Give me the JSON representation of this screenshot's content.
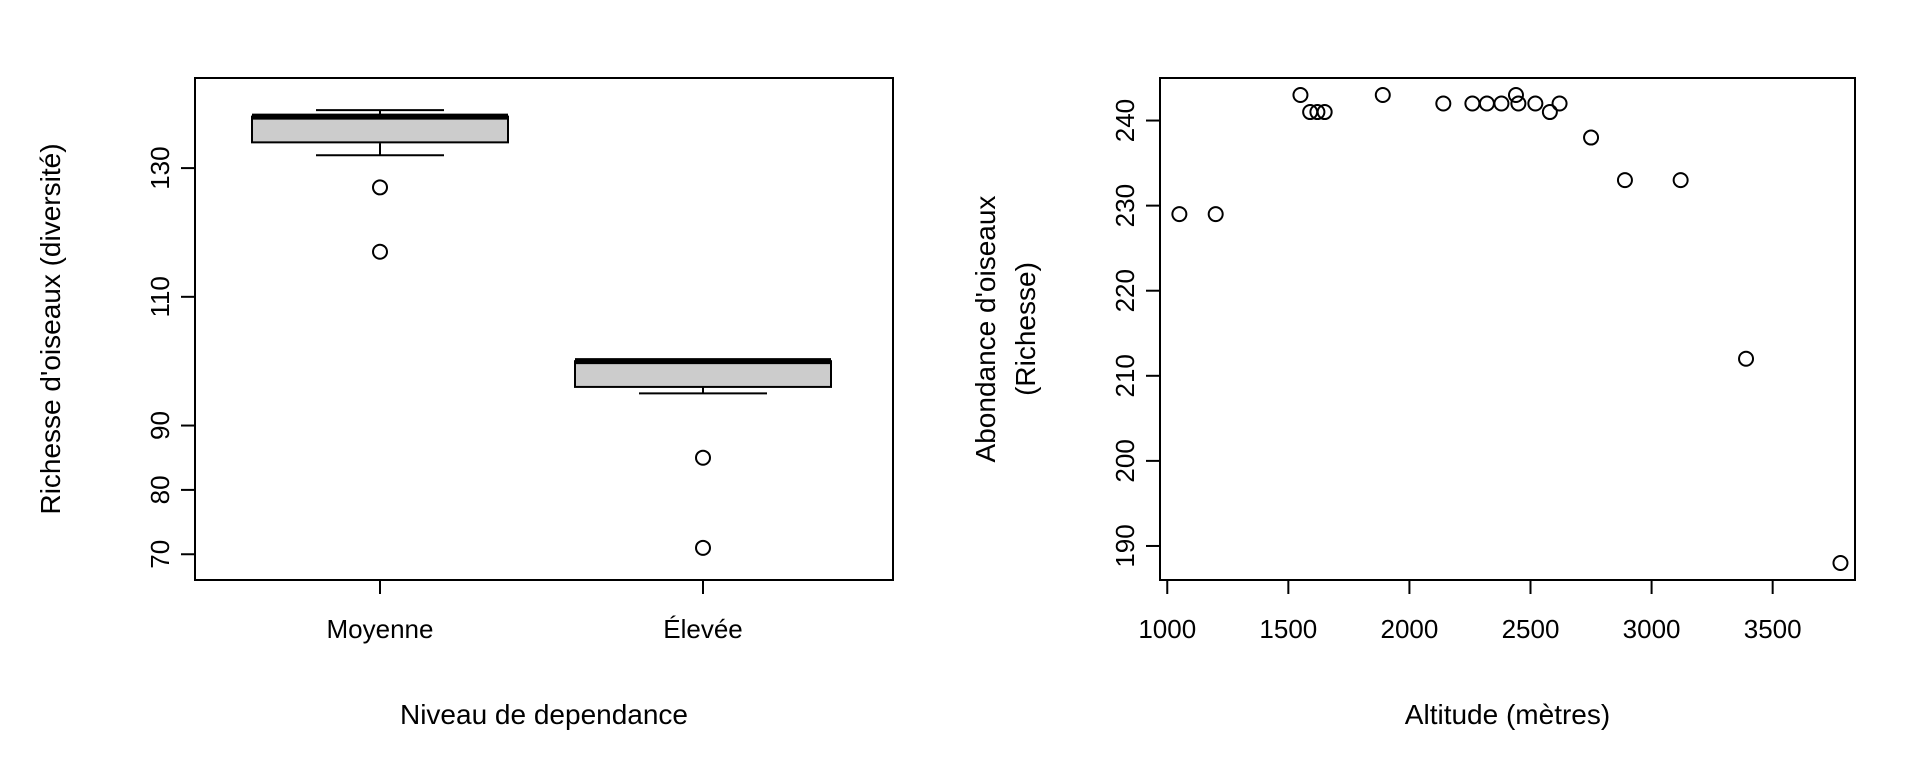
{
  "chart_data": [
    {
      "type": "box",
      "xlabel": "Niveau de dependance",
      "ylabel": "Richesse d'oiseaux (diversité)",
      "categories": [
        "Moyenne",
        "Élevée"
      ],
      "ylim": [
        66,
        144
      ],
      "yticks": [
        70,
        80,
        90,
        110,
        130
      ],
      "grid": false,
      "legend": "none",
      "boxes": [
        {
          "category": "Moyenne",
          "whisker_low": 132,
          "q1": 134,
          "median": 138,
          "q3": 138,
          "whisker_high": 139,
          "outliers": [
            127,
            117
          ]
        },
        {
          "category": "Élevée",
          "whisker_low": 95,
          "q1": 96,
          "median": 100,
          "q3": 100,
          "whisker_high": 100,
          "outliers": [
            85,
            71
          ]
        }
      ],
      "colors": {
        "box_fill": "#cccccc",
        "line": "#000000"
      }
    },
    {
      "type": "scatter",
      "xlabel": "Altitude (mètres)",
      "ylabel": [
        "Abondance d'oiseaux",
        "(Richesse)"
      ],
      "xlim": [
        970,
        3840
      ],
      "ylim": [
        186,
        245
      ],
      "xticks": [
        1000,
        1500,
        2000,
        2500,
        3000,
        3500
      ],
      "yticks": [
        190,
        200,
        210,
        220,
        230,
        240
      ],
      "grid": false,
      "legend": "none",
      "points": [
        {
          "x": 1050,
          "y": 229
        },
        {
          "x": 1200,
          "y": 229
        },
        {
          "x": 1550,
          "y": 243
        },
        {
          "x": 1590,
          "y": 241
        },
        {
          "x": 1620,
          "y": 241
        },
        {
          "x": 1650,
          "y": 241
        },
        {
          "x": 1890,
          "y": 243
        },
        {
          "x": 2140,
          "y": 242
        },
        {
          "x": 2260,
          "y": 242
        },
        {
          "x": 2320,
          "y": 242
        },
        {
          "x": 2380,
          "y": 242
        },
        {
          "x": 2440,
          "y": 243
        },
        {
          "x": 2450,
          "y": 242
        },
        {
          "x": 2520,
          "y": 242
        },
        {
          "x": 2580,
          "y": 241
        },
        {
          "x": 2620,
          "y": 242
        },
        {
          "x": 2750,
          "y": 238
        },
        {
          "x": 2890,
          "y": 233
        },
        {
          "x": 3120,
          "y": 233
        },
        {
          "x": 3390,
          "y": 212
        },
        {
          "x": 3780,
          "y": 188
        }
      ],
      "colors": {
        "marker": "#000000"
      }
    }
  ]
}
